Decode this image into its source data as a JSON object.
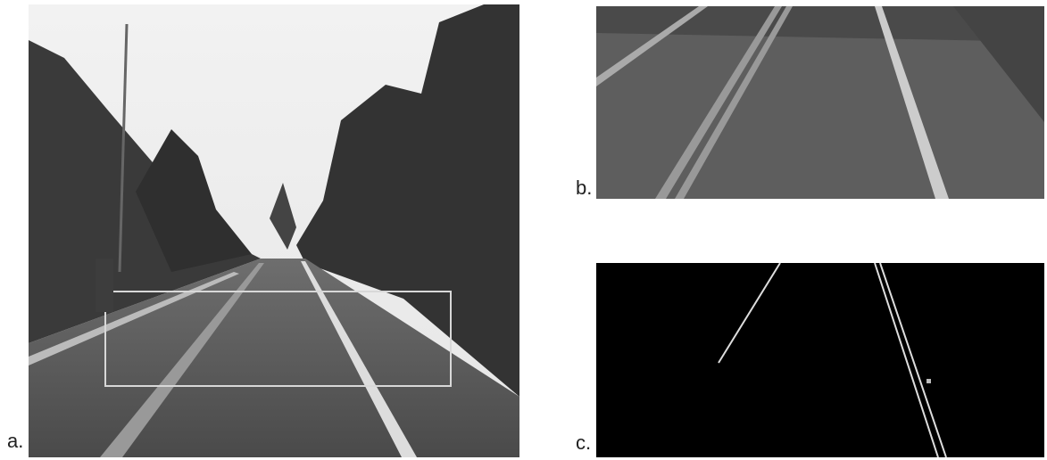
{
  "panels": [
    {
      "label": "a."
    },
    {
      "label": "b."
    },
    {
      "label": "c."
    }
  ]
}
